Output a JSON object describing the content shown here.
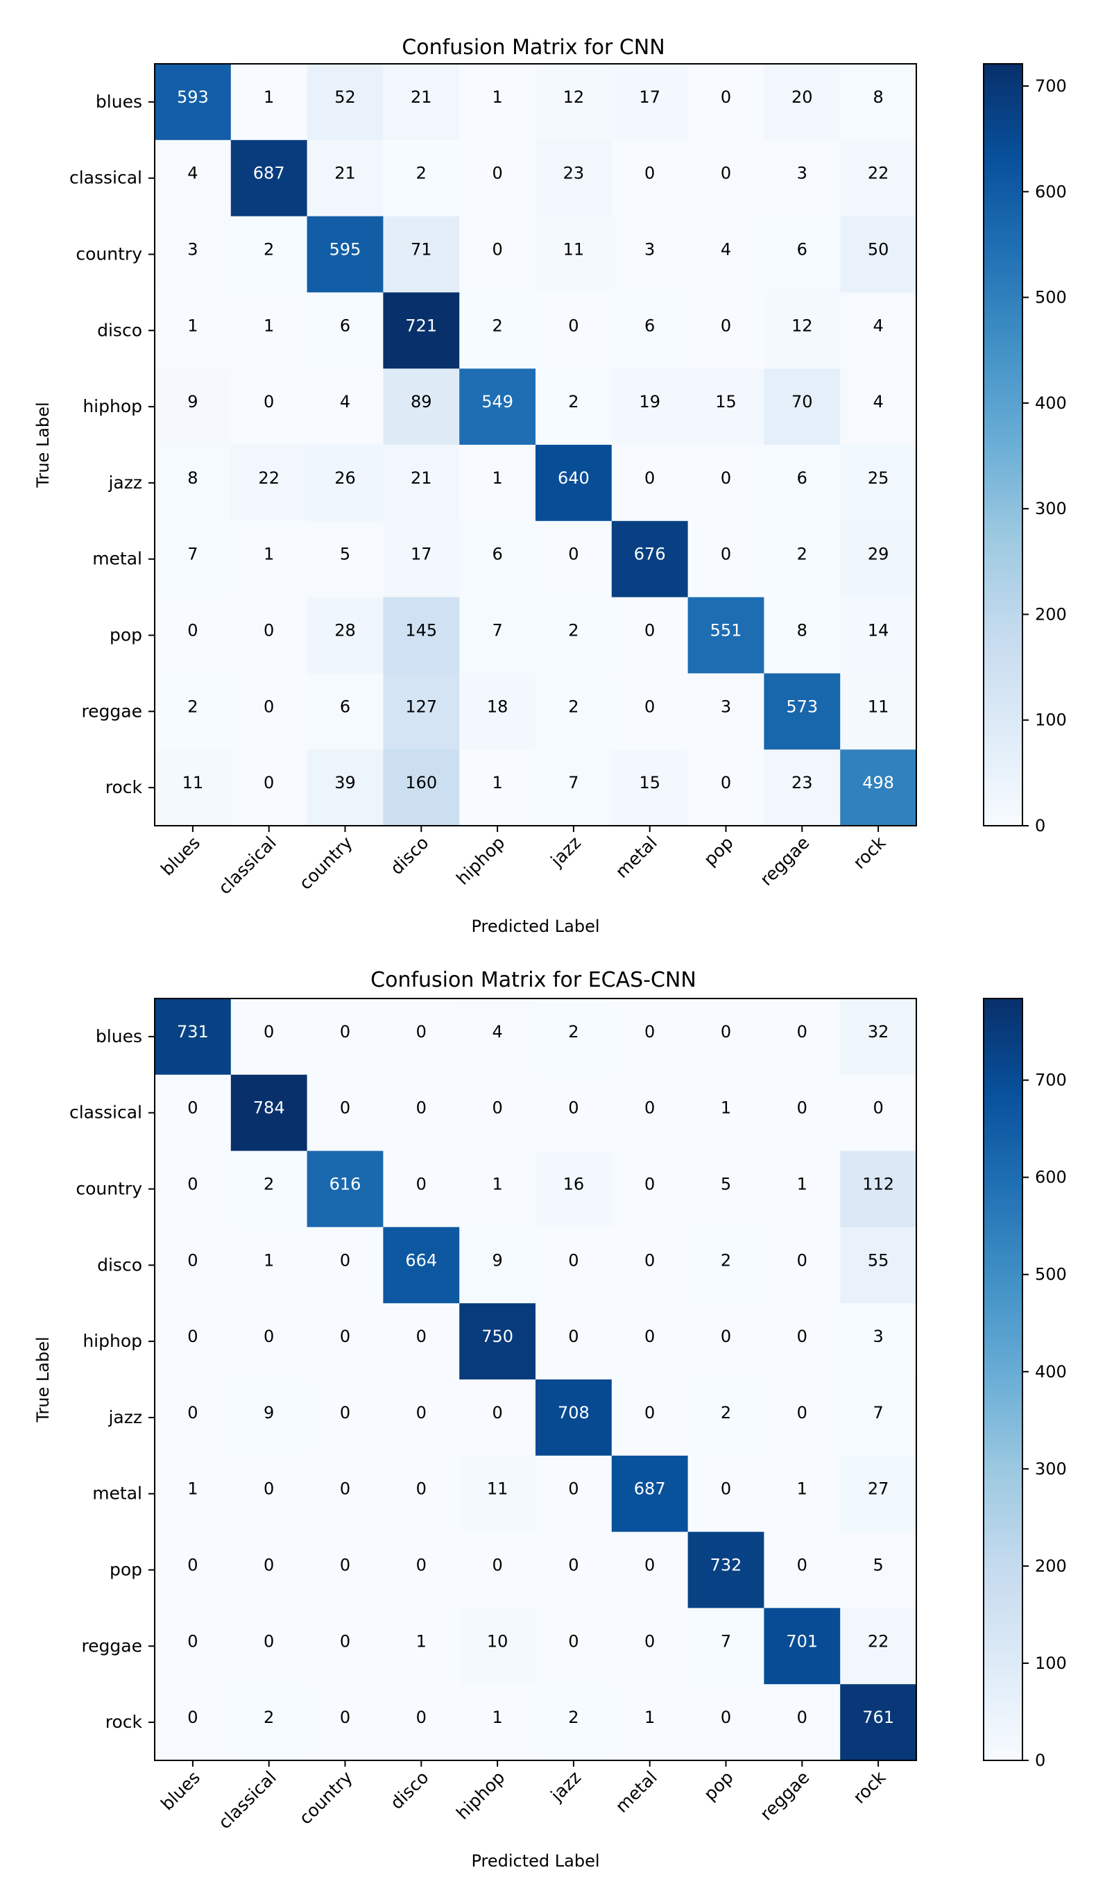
{
  "chart_data": [
    {
      "type": "heatmap",
      "title": "Confusion Matrix for CNN",
      "xlabel": "Predicted Label",
      "ylabel": "True Label",
      "categories": [
        "blues",
        "classical",
        "country",
        "disco",
        "hiphop",
        "jazz",
        "metal",
        "pop",
        "reggae",
        "rock"
      ],
      "matrix": [
        [
          593,
          1,
          52,
          21,
          1,
          12,
          17,
          0,
          20,
          8
        ],
        [
          4,
          687,
          21,
          2,
          0,
          23,
          0,
          0,
          3,
          22
        ],
        [
          3,
          2,
          595,
          71,
          0,
          11,
          3,
          4,
          6,
          50
        ],
        [
          1,
          1,
          6,
          721,
          2,
          0,
          6,
          0,
          12,
          4
        ],
        [
          9,
          0,
          4,
          89,
          549,
          2,
          19,
          15,
          70,
          4
        ],
        [
          8,
          22,
          26,
          21,
          1,
          640,
          0,
          0,
          6,
          25
        ],
        [
          7,
          1,
          5,
          17,
          6,
          0,
          676,
          0,
          2,
          29
        ],
        [
          0,
          0,
          28,
          145,
          7,
          2,
          0,
          551,
          8,
          14
        ],
        [
          2,
          0,
          6,
          127,
          18,
          2,
          0,
          3,
          573,
          11
        ],
        [
          11,
          0,
          39,
          160,
          1,
          7,
          15,
          0,
          23,
          498
        ]
      ],
      "colorbar": {
        "min": 0,
        "max": 721,
        "ticks": [
          "0",
          "100",
          "200",
          "300",
          "400",
          "500",
          "600",
          "700"
        ]
      },
      "colormap": "Blues",
      "colors": {
        "low": "#f7fbff",
        "high": "#08306b"
      }
    },
    {
      "type": "heatmap",
      "title": "Confusion Matrix for ECAS-CNN",
      "xlabel": "Predicted Label",
      "ylabel": "True Label",
      "categories": [
        "blues",
        "classical",
        "country",
        "disco",
        "hiphop",
        "jazz",
        "metal",
        "pop",
        "reggae",
        "rock"
      ],
      "matrix": [
        [
          731,
          0,
          0,
          0,
          4,
          2,
          0,
          0,
          0,
          32
        ],
        [
          0,
          784,
          0,
          0,
          0,
          0,
          0,
          1,
          0,
          0
        ],
        [
          0,
          2,
          616,
          0,
          1,
          16,
          0,
          5,
          1,
          112
        ],
        [
          0,
          1,
          0,
          664,
          9,
          0,
          0,
          2,
          0,
          55
        ],
        [
          0,
          0,
          0,
          0,
          750,
          0,
          0,
          0,
          0,
          3
        ],
        [
          0,
          9,
          0,
          0,
          0,
          708,
          0,
          2,
          0,
          7
        ],
        [
          1,
          0,
          0,
          0,
          11,
          0,
          687,
          0,
          1,
          27
        ],
        [
          0,
          0,
          0,
          0,
          0,
          0,
          0,
          732,
          0,
          5
        ],
        [
          0,
          0,
          0,
          1,
          10,
          0,
          0,
          7,
          701,
          22
        ],
        [
          0,
          2,
          0,
          0,
          1,
          2,
          1,
          0,
          0,
          761
        ]
      ],
      "colorbar": {
        "min": 0,
        "max": 784,
        "ticks": [
          "0",
          "100",
          "200",
          "300",
          "400",
          "500",
          "600",
          "700"
        ]
      },
      "colormap": "Blues",
      "colors": {
        "low": "#f7fbff",
        "high": "#08306b"
      }
    }
  ]
}
